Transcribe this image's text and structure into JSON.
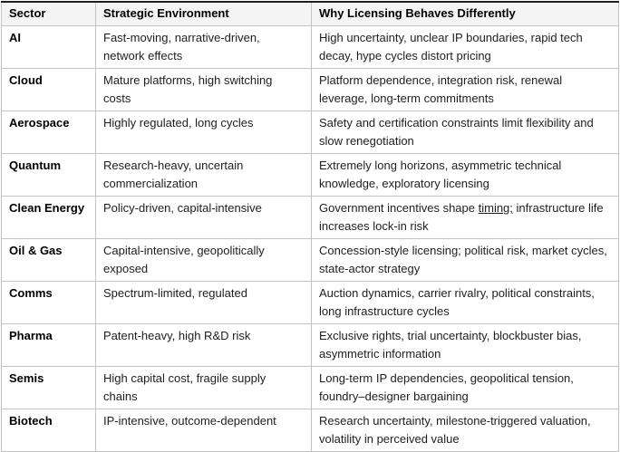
{
  "colors": {
    "header_bg": "#f4f4f4",
    "grid_border": "#c3c3c3",
    "top_border": "#1f1f1f",
    "text": "#1e1e1e",
    "page_bg": "#ffffff"
  },
  "table": {
    "columns": [
      {
        "label": "Sector"
      },
      {
        "label": "Strategic Environment"
      },
      {
        "label": "Why Licensing Behaves Differently"
      }
    ],
    "rows": [
      {
        "sector": "AI",
        "environment": "Fast-moving, narrative-driven, network effects",
        "why": [
          {
            "t": "High uncertainty, unclear IP boundaries, rapid tech decay, hype cycles distort pricing"
          }
        ]
      },
      {
        "sector": "Cloud",
        "environment": "Mature platforms, high switching costs",
        "why": [
          {
            "t": "Platform dependence, integration risk, renewal leverage, long-term commitments"
          }
        ]
      },
      {
        "sector": "Aerospace",
        "environment": "Highly regulated, long cycles",
        "why": [
          {
            "t": "Safety and certification constraints limit flexibility and slow renegotiation"
          }
        ]
      },
      {
        "sector": "Quantum",
        "environment": "Research-heavy, uncertain commercialization",
        "why": [
          {
            "t": "Extremely long horizons, asymmetric technical knowledge, exploratory licensing"
          }
        ]
      },
      {
        "sector": "Clean Energy",
        "environment": "Policy-driven, capital-intensive",
        "why": [
          {
            "t": "Government incentives shape "
          },
          {
            "t": "timing;",
            "underline": true
          },
          {
            "t": " infrastructure life increases lock-in risk"
          }
        ]
      },
      {
        "sector": "Oil & Gas",
        "environment": "Capital-intensive, geopolitically exposed",
        "why": [
          {
            "t": "Concession-style licensing; political risk, market cycles, state-actor strategy"
          }
        ]
      },
      {
        "sector": "Comms",
        "environment": "Spectrum-limited, regulated",
        "why": [
          {
            "t": "Auction dynamics, carrier rivalry, political constraints, long infrastructure cycles"
          }
        ]
      },
      {
        "sector": "Pharma",
        "environment": "Patent-heavy, high R&D risk",
        "why": [
          {
            "t": "Exclusive rights, trial uncertainty, blockbuster bias, asymmetric information"
          }
        ]
      },
      {
        "sector": "Semis",
        "environment": "High capital cost, fragile supply chains",
        "why": [
          {
            "t": "Long-term IP dependencies, geopolitical tension, foundry–designer bargaining"
          }
        ]
      },
      {
        "sector": "Biotech",
        "environment": "IP-intensive, outcome-dependent",
        "why": [
          {
            "t": "Research uncertainty, milestone-triggered valuation, volatility in perceived value"
          }
        ]
      }
    ]
  }
}
